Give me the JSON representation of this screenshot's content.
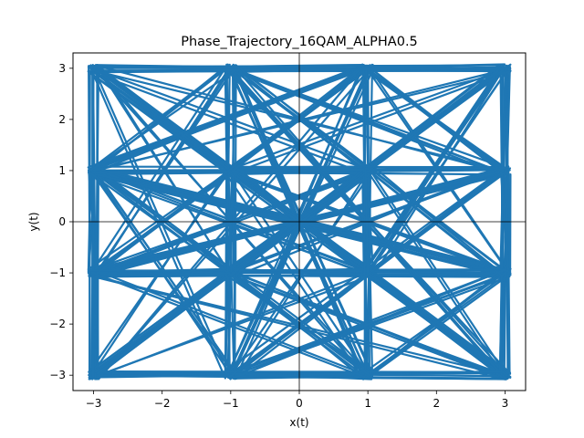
{
  "chart_data": {
    "type": "line",
    "title": "Phase_Trajectory_16QAM_ALPHA0.5",
    "xlabel": "x(t)",
    "ylabel": "y(t)",
    "xlim": [
      -3.3,
      3.3
    ],
    "ylim": [
      -3.3,
      3.3
    ],
    "xticks": [
      -3,
      -2,
      -1,
      0,
      1,
      2,
      3
    ],
    "yticks": [
      -3,
      -2,
      -1,
      0,
      1,
      2,
      3
    ],
    "grid": false,
    "reference_lines": {
      "horizontal": 0,
      "vertical": 0
    },
    "series_color": "#1f77b4",
    "constellation_points": [
      [
        -3,
        -3
      ],
      [
        -3,
        -1
      ],
      [
        -3,
        1
      ],
      [
        -3,
        3
      ],
      [
        -1,
        -3
      ],
      [
        -1,
        -1
      ],
      [
        -1,
        1
      ],
      [
        -1,
        3
      ],
      [
        1,
        -3
      ],
      [
        1,
        -1
      ],
      [
        1,
        1
      ],
      [
        1,
        3
      ],
      [
        3,
        -3
      ],
      [
        3,
        -1
      ],
      [
        3,
        1
      ],
      [
        3,
        3
      ]
    ],
    "trajectory_description_note": "",
    "trajectory_sequence": [
      15,
      0,
      12,
      3,
      10,
      5,
      15,
      9,
      6,
      1,
      14,
      2,
      13,
      4,
      11,
      7,
      8,
      0,
      5,
      12,
      3,
      9,
      15,
      6,
      0,
      10,
      13,
      1,
      7,
      14,
      4,
      2,
      11,
      8,
      3,
      12,
      5,
      15,
      0,
      9,
      6,
      13,
      10,
      2,
      4,
      14,
      7,
      1,
      12,
      15,
      3,
      0,
      11,
      6,
      8,
      5,
      13,
      9,
      2,
      14,
      1,
      10,
      4,
      7,
      15,
      12,
      0,
      3,
      6,
      10,
      9,
      5,
      14,
      11,
      1,
      13,
      8,
      2,
      7,
      4,
      3,
      15,
      12,
      0,
      2,
      13,
      11,
      4,
      6,
      9,
      14,
      1,
      5,
      10,
      7,
      8,
      0,
      15,
      3,
      12,
      10,
      1,
      6,
      13,
      4,
      9,
      2,
      11,
      14,
      5,
      8,
      7,
      12,
      3,
      15,
      0,
      1,
      14,
      13,
      2,
      11,
      4,
      8,
      7,
      10,
      6,
      9,
      5,
      3,
      0,
      15,
      12,
      7,
      11,
      4,
      8,
      13,
      14,
      1,
      2,
      5,
      6,
      9,
      10,
      0,
      3,
      12,
      15,
      2,
      1,
      14,
      13,
      8,
      11,
      7,
      4,
      6,
      10,
      5,
      9,
      15,
      3,
      0,
      12,
      9,
      6,
      10,
      5,
      1,
      13,
      2,
      14,
      11,
      8,
      4,
      7,
      12,
      0,
      15,
      3,
      14,
      4,
      13,
      7,
      2,
      8,
      1,
      11,
      6,
      5,
      10,
      9,
      15
    ]
  }
}
